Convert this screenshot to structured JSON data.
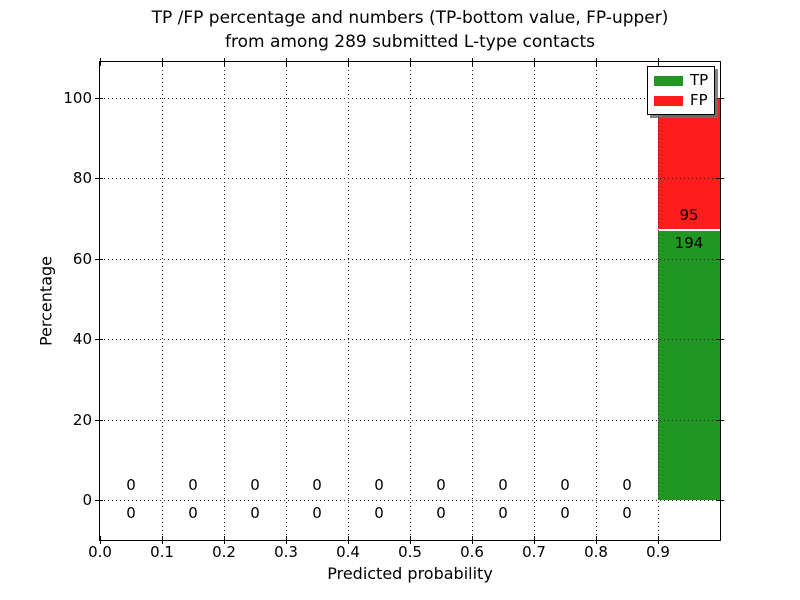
{
  "chart_data": {
    "type": "bar",
    "stacked": true,
    "title_line1": "TP /FP percentage and numbers (TP-bottom value, FP-upper)",
    "title_line2": "from among 289 submitted L-type contacts",
    "xlabel": "Predicted probability",
    "ylabel": "Percentage",
    "total_contacts": 289,
    "xlim": [
      0.0,
      1.0
    ],
    "ylim": [
      -10,
      109
    ],
    "grid": "dotted",
    "x_tick_labels": [
      "0.0",
      "0.1",
      "0.2",
      "0.3",
      "0.4",
      "0.5",
      "0.6",
      "0.7",
      "0.8",
      "0.9"
    ],
    "x_tick_values": [
      0.0,
      0.1,
      0.2,
      0.3,
      0.4,
      0.5,
      0.6,
      0.7,
      0.8,
      0.9
    ],
    "y_ticks": [
      0,
      20,
      40,
      60,
      80,
      100
    ],
    "bins": {
      "centers": [
        0.05,
        0.15,
        0.25,
        0.35,
        0.45,
        0.55,
        0.65,
        0.75,
        0.85,
        0.95
      ],
      "tp_counts": [
        0,
        0,
        0,
        0,
        0,
        0,
        0,
        0,
        0,
        194
      ],
      "fp_counts": [
        0,
        0,
        0,
        0,
        0,
        0,
        0,
        0,
        0,
        95
      ]
    },
    "bar_percentages_last_bin": {
      "tp_pct": 67.1,
      "fp_pct": 32.9
    },
    "colors": {
      "tp": "#229622",
      "fp": "#ff1c1c"
    },
    "legend": [
      {
        "label": "TP",
        "color_key": "tp"
      },
      {
        "label": "FP",
        "color_key": "fp"
      }
    ],
    "legend_position": "upper right"
  }
}
